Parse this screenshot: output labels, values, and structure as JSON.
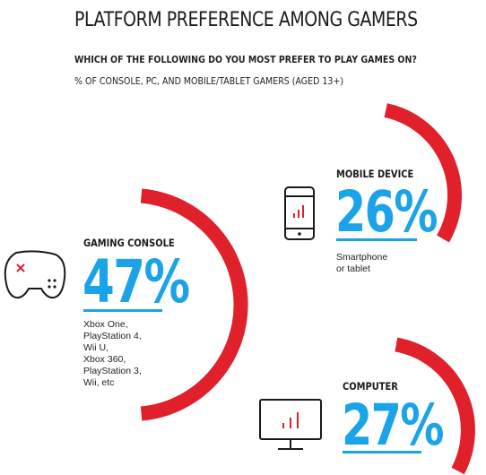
{
  "title": "PLATFORM PREFERENCE AMONG GAMERS",
  "subtitle_question": "WHICH OF THE FOLLOWING DO YOU MOST PREFER TO PLAY GAMES ON?",
  "subtitle_base": "% OF CONSOLE, PC, AND MOBILE/TABLET GAMERS (AGED 13+)",
  "colors": {
    "arc": "#e0202a",
    "value": "#1aa3e8",
    "icon": "#1a1a1a",
    "icon_accent": "#e0202a"
  },
  "chart_data": {
    "type": "pie",
    "title": "PLATFORM PREFERENCE AMONG GAMERS",
    "categories": [
      "GAMING CONSOLE",
      "MOBILE DEVICE",
      "COMPUTER"
    ],
    "values": [
      47,
      26,
      27
    ],
    "value_labels": [
      "47%",
      "26%",
      "27%"
    ],
    "descriptions": [
      "Xbox One,\nPlayStation 4,\nWii U,\nXbox 360,\nPlayStation 3,\nWii, etc",
      "Smartphone\nor tablet",
      ""
    ],
    "icons": [
      "gamepad-icon",
      "smartphone-icon",
      "monitor-icon"
    ]
  }
}
